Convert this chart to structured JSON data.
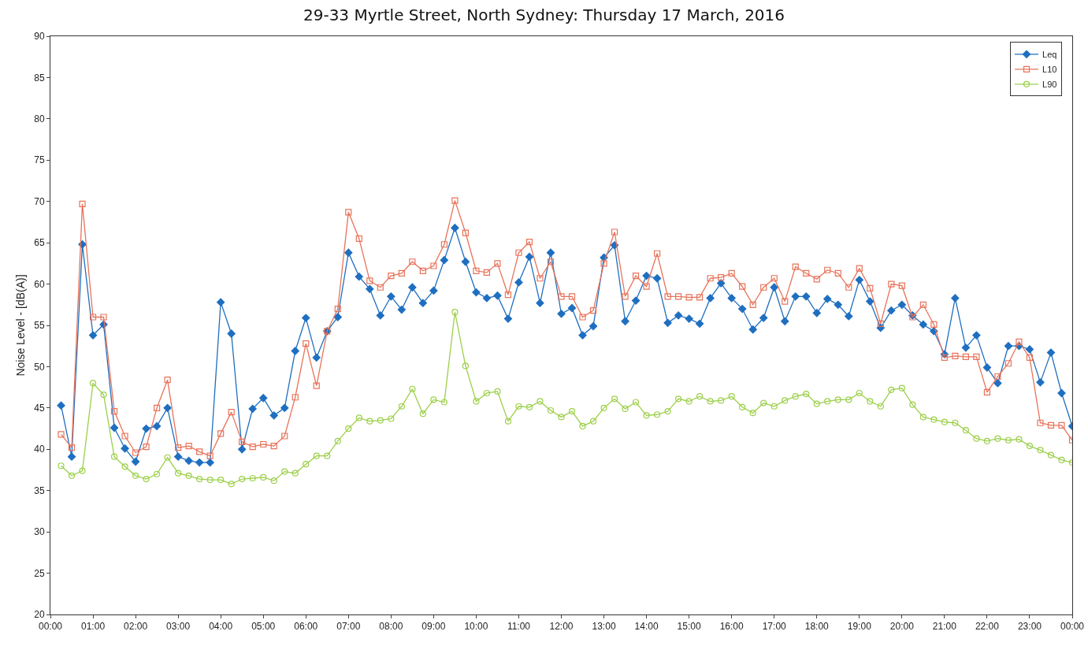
{
  "chart_data": {
    "type": "line",
    "title": "29-33 Myrtle Street, North Sydney: Thursday 17 March, 2016",
    "ylabel": "Noise Level - [dB(A)]",
    "x": [
      0.25,
      0.5,
      0.75,
      1,
      1.25,
      1.5,
      1.75,
      2,
      2.25,
      2.5,
      2.75,
      3,
      3.25,
      3.5,
      3.75,
      4,
      4.25,
      4.5,
      4.75,
      5,
      5.25,
      5.5,
      5.75,
      6,
      6.25,
      6.5,
      6.75,
      7,
      7.25,
      7.5,
      7.75,
      8,
      8.25,
      8.5,
      8.75,
      9,
      9.25,
      9.5,
      9.75,
      10,
      10.25,
      10.5,
      10.75,
      11,
      11.25,
      11.5,
      11.75,
      12,
      12.25,
      12.5,
      12.75,
      13,
      13.25,
      13.5,
      13.75,
      14,
      14.25,
      14.5,
      14.75,
      15,
      15.25,
      15.5,
      15.75,
      16,
      16.25,
      16.5,
      16.75,
      17,
      17.25,
      17.5,
      17.75,
      18,
      18.25,
      18.5,
      18.75,
      19,
      19.25,
      19.5,
      19.75,
      20,
      20.25,
      20.5,
      20.75,
      21,
      21.25,
      21.5,
      21.75,
      22,
      22.25,
      22.5,
      22.75,
      23,
      23.25,
      23.5,
      23.75,
      24
    ],
    "series": [
      {
        "name": "Leq",
        "color": "#1f6fc0",
        "marker": "diamond",
        "values": [
          45.3,
          39.1,
          64.8,
          53.8,
          55.1,
          42.6,
          40.1,
          38.5,
          42.5,
          42.8,
          45.0,
          39.1,
          38.6,
          38.4,
          38.4,
          57.8,
          54.0,
          40.0,
          44.9,
          46.2,
          44.1,
          45.0,
          51.9,
          55.9,
          51.1,
          54.3,
          56.0,
          63.8,
          60.9,
          59.4,
          56.2,
          58.5,
          56.9,
          59.6,
          57.7,
          59.2,
          62.9,
          66.8,
          62.7,
          59.0,
          58.3,
          58.6,
          55.8,
          60.2,
          63.3,
          57.7,
          63.8,
          56.4,
          57.1,
          53.8,
          54.9,
          63.2,
          64.7,
          55.5,
          58.0,
          61.0,
          60.7,
          55.3,
          56.2,
          55.8,
          55.2,
          58.3,
          60.1,
          58.3,
          57.0,
          54.5,
          55.9,
          59.6,
          55.5,
          58.5,
          58.5,
          56.5,
          58.2,
          57.5,
          56.1,
          60.5,
          57.9,
          54.7,
          56.8,
          57.5,
          56.2,
          55.1,
          54.3,
          51.5,
          58.3,
          52.3,
          53.8,
          49.9,
          48.0,
          52.5,
          52.5,
          52.1,
          48.1,
          51.7,
          46.8,
          42.8
        ]
      },
      {
        "name": "L10",
        "color": "#e8735a",
        "marker": "square",
        "values": [
          41.8,
          40.2,
          69.7,
          56.0,
          56.0,
          44.6,
          41.6,
          39.6,
          40.3,
          45.0,
          48.4,
          40.2,
          40.4,
          39.7,
          39.2,
          41.9,
          44.5,
          40.9,
          40.3,
          40.6,
          40.4,
          41.6,
          46.3,
          52.8,
          47.7,
          54.3,
          57.0,
          68.7,
          65.5,
          60.4,
          59.6,
          61.0,
          61.3,
          62.7,
          61.6,
          62.2,
          64.8,
          70.1,
          66.2,
          61.6,
          61.4,
          62.5,
          58.7,
          63.8,
          65.1,
          60.7,
          62.7,
          58.5,
          58.5,
          56.0,
          56.8,
          62.5,
          66.3,
          58.5,
          61.0,
          59.7,
          63.7,
          58.5,
          58.5,
          58.4,
          58.4,
          60.7,
          60.8,
          61.3,
          59.7,
          57.5,
          59.6,
          60.7,
          57.9,
          62.1,
          61.3,
          60.6,
          61.7,
          61.3,
          59.6,
          61.9,
          59.5,
          55.2,
          60.0,
          59.8,
          56.0,
          57.5,
          55.1,
          51.1,
          51.3,
          51.2,
          51.2,
          46.9,
          48.8,
          50.4,
          53.0,
          51.1,
          43.2,
          42.9,
          42.9,
          41.1
        ]
      },
      {
        "name": "L90",
        "color": "#9ccf4a",
        "marker": "circle",
        "values": [
          38.0,
          36.8,
          37.4,
          48.0,
          46.6,
          39.1,
          37.9,
          36.8,
          36.4,
          37.0,
          39.0,
          37.1,
          36.8,
          36.4,
          36.3,
          36.3,
          35.8,
          36.4,
          36.5,
          36.6,
          36.2,
          37.3,
          37.1,
          38.2,
          39.2,
          39.2,
          41.0,
          42.5,
          43.8,
          43.4,
          43.5,
          43.7,
          45.2,
          47.3,
          44.3,
          46.0,
          45.7,
          56.6,
          50.1,
          45.8,
          46.8,
          47.0,
          43.4,
          45.2,
          45.1,
          45.8,
          44.7,
          43.9,
          44.6,
          42.8,
          43.4,
          45.0,
          46.1,
          44.9,
          45.7,
          44.1,
          44.2,
          44.6,
          46.1,
          45.8,
          46.4,
          45.8,
          45.9,
          46.4,
          45.1,
          44.4,
          45.6,
          45.2,
          45.9,
          46.4,
          46.7,
          45.5,
          45.8,
          46.0,
          46.0,
          46.8,
          45.8,
          45.2,
          47.2,
          47.4,
          45.4,
          43.9,
          43.6,
          43.3,
          43.2,
          42.3,
          41.3,
          41.0,
          41.3,
          41.1,
          41.2,
          40.4,
          39.9,
          39.3,
          38.7,
          38.4
        ]
      }
    ],
    "xlim": [
      0,
      24
    ],
    "xticks": [
      {
        "value": 0,
        "label": "00:00"
      },
      {
        "value": 1,
        "label": "01:00"
      },
      {
        "value": 2,
        "label": "02:00"
      },
      {
        "value": 3,
        "label": "03:00"
      },
      {
        "value": 4,
        "label": "04:00"
      },
      {
        "value": 5,
        "label": "05:00"
      },
      {
        "value": 6,
        "label": "06:00"
      },
      {
        "value": 7,
        "label": "07:00"
      },
      {
        "value": 8,
        "label": "08:00"
      },
      {
        "value": 9,
        "label": "09:00"
      },
      {
        "value": 10,
        "label": "10:00"
      },
      {
        "value": 11,
        "label": "11:00"
      },
      {
        "value": 12,
        "label": "12:00"
      },
      {
        "value": 13,
        "label": "13:00"
      },
      {
        "value": 14,
        "label": "14:00"
      },
      {
        "value": 15,
        "label": "15:00"
      },
      {
        "value": 16,
        "label": "16:00"
      },
      {
        "value": 17,
        "label": "17:00"
      },
      {
        "value": 18,
        "label": "18:00"
      },
      {
        "value": 19,
        "label": "19:00"
      },
      {
        "value": 20,
        "label": "20:00"
      },
      {
        "value": 21,
        "label": "21:00"
      },
      {
        "value": 22,
        "label": "22:00"
      },
      {
        "value": 23,
        "label": "23:00"
      },
      {
        "value": 24,
        "label": "00:00"
      }
    ],
    "ylim": [
      20,
      90
    ],
    "yticks": [
      20,
      25,
      30,
      35,
      40,
      45,
      50,
      55,
      60,
      65,
      70,
      75,
      80,
      85,
      90
    ],
    "grid": false,
    "legend": "top right",
    "line_style": "solid"
  }
}
